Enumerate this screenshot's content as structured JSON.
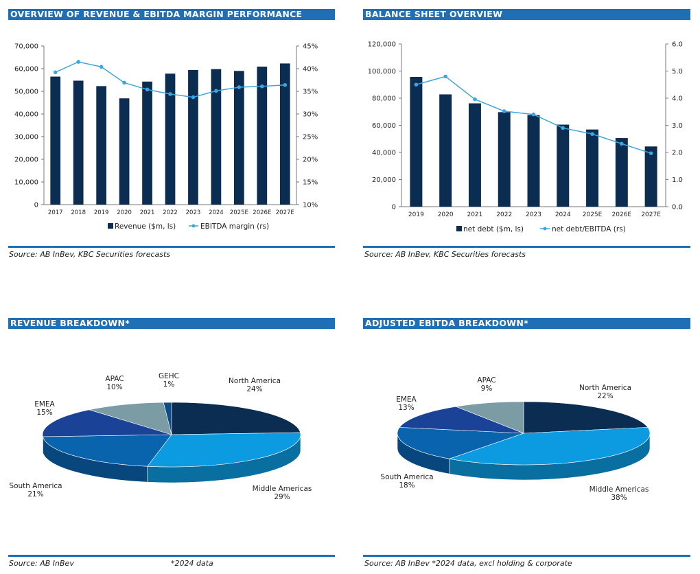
{
  "panels": {
    "p1": {
      "title": "OVERVIEW OF REVENUE & EBITDA MARGIN PERFORMANCE",
      "source": "Source: AB InBev, KBC Securities forecasts"
    },
    "p2": {
      "title": "BALANCE SHEET OVERVIEW",
      "source": "Source: AB InBev, KBC Securities forecasts"
    },
    "p3": {
      "title": "REVENUE BREAKDOWN*",
      "source": "Source: AB InBev",
      "note": "*2024 data"
    },
    "p4": {
      "title": "ADJUSTED EBITDA BREAKDOWN*",
      "source": "Source: AB InBev *2024 data, excl holding & corporate"
    }
  },
  "colors": {
    "bar": "#0b2d52",
    "line": "#3ea6dc",
    "header": "#1e6fb5"
  },
  "chart_data": [
    {
      "type": "bar",
      "categories": [
        "2017",
        "2018",
        "2019",
        "2020",
        "2021",
        "2022",
        "2023",
        "2024",
        "2025E",
        "2026E",
        "2027E"
      ],
      "series": [
        {
          "name": "Revenue ($m, ls)",
          "values": [
            56500,
            54700,
            52300,
            46900,
            54300,
            57800,
            59400,
            59800,
            59000,
            60900,
            62300
          ],
          "axis": "left",
          "kind": "bar"
        },
        {
          "name": "EBITDA margin (rs)",
          "values": [
            39.2,
            41.5,
            40.4,
            36.9,
            35.4,
            34.4,
            33.7,
            35.1,
            35.9,
            36.1,
            36.4
          ],
          "axis": "right",
          "kind": "line"
        }
      ],
      "ylim_left": [
        0,
        70000
      ],
      "yticks_left": [
        "0",
        "10,000",
        "20,000",
        "30,000",
        "40,000",
        "50,000",
        "60,000",
        "70,000"
      ],
      "ylim_right": [
        10,
        45
      ],
      "yticks_right": [
        "10%",
        "15%",
        "20%",
        "25%",
        "30%",
        "35%",
        "40%",
        "45%"
      ],
      "legend": "bottom"
    },
    {
      "type": "bar",
      "categories": [
        "2019",
        "2020",
        "2021",
        "2022",
        "2023",
        "2024",
        "2025E",
        "2026E",
        "2027E"
      ],
      "series": [
        {
          "name": "net debt ($m, ls)",
          "values": [
            95700,
            82800,
            76200,
            69700,
            67600,
            60500,
            56900,
            50600,
            44400
          ],
          "axis": "left",
          "kind": "bar"
        },
        {
          "name": "net debt/EBITDA (rs)",
          "values": [
            4.5,
            4.8,
            3.96,
            3.52,
            3.4,
            2.9,
            2.68,
            2.32,
            1.97
          ],
          "axis": "right",
          "kind": "line"
        }
      ],
      "ylim_left": [
        0,
        120000
      ],
      "yticks_left": [
        "0",
        "20,000",
        "40,000",
        "60,000",
        "80,000",
        "100,000",
        "120,000"
      ],
      "ylim_right": [
        0,
        6
      ],
      "yticks_right": [
        "0.0",
        "1.0",
        "2.0",
        "3.0",
        "4.0",
        "5.0",
        "6.0"
      ],
      "legend": "bottom"
    },
    {
      "type": "pie",
      "slices": [
        {
          "label": "North America",
          "pct": "24%",
          "value": 24,
          "color": "#0b2d52"
        },
        {
          "label": "Middle Americas",
          "pct": "29%",
          "value": 29,
          "color": "#0c9ae0"
        },
        {
          "label": "South America",
          "pct": "21%",
          "value": 21,
          "color": "#0a63ad"
        },
        {
          "label": "EMEA",
          "pct": "15%",
          "value": 15,
          "color": "#1a4296"
        },
        {
          "label": "APAC",
          "pct": "10%",
          "value": 10,
          "color": "#7b9ca4"
        },
        {
          "label": "GEHC",
          "pct": "1%",
          "value": 1,
          "color": "#0e4e88"
        }
      ]
    },
    {
      "type": "pie",
      "slices": [
        {
          "label": "North America",
          "pct": "22%",
          "value": 22,
          "color": "#0b2d52"
        },
        {
          "label": "Middle Americas",
          "pct": "38%",
          "value": 38,
          "color": "#0c9ae0"
        },
        {
          "label": "South America",
          "pct": "18%",
          "value": 18,
          "color": "#0a63ad"
        },
        {
          "label": "EMEA",
          "pct": "13%",
          "value": 13,
          "color": "#1a4296"
        },
        {
          "label": "APAC",
          "pct": "9%",
          "value": 9,
          "color": "#7b9ca4"
        }
      ]
    }
  ]
}
